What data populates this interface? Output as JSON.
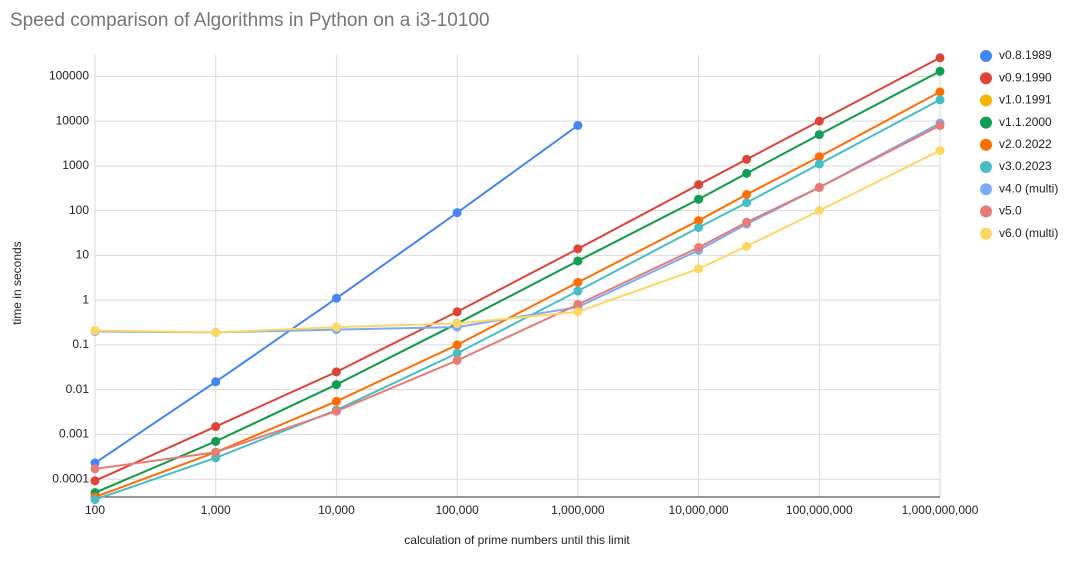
{
  "chart_data": {
    "type": "line",
    "title": "Speed comparison of Algorithms in Python on a i3-10100",
    "x_label": "calculation of prime numbers until this limit",
    "y_label": "time in seconds",
    "x": [
      100,
      1000,
      10000,
      100000,
      1000000,
      10000000,
      25000000,
      100000000,
      1000000000
    ],
    "log_x": true,
    "log_y": true,
    "grid": true,
    "legend": "right",
    "xlim": [
      100,
      1000000000
    ],
    "ylim": [
      4e-05,
      300000
    ],
    "xticks": [
      {
        "value": 100,
        "label": "100"
      },
      {
        "value": 1000,
        "label": "1,000"
      },
      {
        "value": 10000,
        "label": "10,000"
      },
      {
        "value": 100000,
        "label": "100,000"
      },
      {
        "value": 1000000,
        "label": "1,000,000"
      },
      {
        "value": 10000000,
        "label": "10,000,000"
      },
      {
        "value": 100000000,
        "label": "100,000,000"
      },
      {
        "value": 1000000000,
        "label": "1,000,000,000"
      }
    ],
    "yticks": [
      0.0001,
      0.001,
      0.01,
      0.1,
      1,
      10,
      100,
      1000,
      10000,
      100000
    ],
    "series": [
      {
        "name": "v0.8.1989",
        "color": "#4285f4",
        "values": [
          0.00023,
          0.015,
          1.1,
          90,
          8000,
          null,
          null,
          null,
          null
        ]
      },
      {
        "name": "v0.9.1990",
        "color": "#db4437",
        "values": [
          9.2e-05,
          0.0015,
          0.025,
          0.55,
          14,
          380,
          1400,
          10000,
          260000
        ]
      },
      {
        "name": "v1.0.1991",
        "color": "#f4b400",
        "values": [
          5e-05,
          0.0007,
          0.013,
          0.3,
          7.5,
          180,
          680,
          5000,
          130000
        ]
      },
      {
        "name": "v1.1.2000",
        "color": "#0f9d58",
        "values": [
          5e-05,
          0.0007,
          0.013,
          0.3,
          7.5,
          180,
          680,
          5000,
          130000
        ]
      },
      {
        "name": "v2.0.2022",
        "color": "#ff6d01",
        "values": [
          4e-05,
          0.0004,
          0.0055,
          0.1,
          2.5,
          60,
          230,
          1600,
          45000
        ]
      },
      {
        "name": "v3.0.2023",
        "color": "#46bdc6",
        "values": [
          3.5e-05,
          0.0003,
          0.0035,
          0.065,
          1.6,
          42,
          150,
          1100,
          30000
        ]
      },
      {
        "name": "v4.0 (multi)",
        "color": "#7baaf7",
        "values": [
          0.2,
          0.19,
          0.22,
          0.25,
          0.7,
          13,
          50,
          330,
          9000
        ]
      },
      {
        "name": "v5.0",
        "color": "#e67c73",
        "values": [
          0.00017,
          0.0004,
          0.0033,
          0.045,
          0.8,
          15,
          55,
          330,
          8000
        ]
      },
      {
        "name": "v6.0 (multi)",
        "color": "#fdd663",
        "values": [
          0.21,
          0.19,
          0.25,
          0.3,
          0.55,
          5,
          16,
          100,
          2200
        ]
      }
    ]
  }
}
